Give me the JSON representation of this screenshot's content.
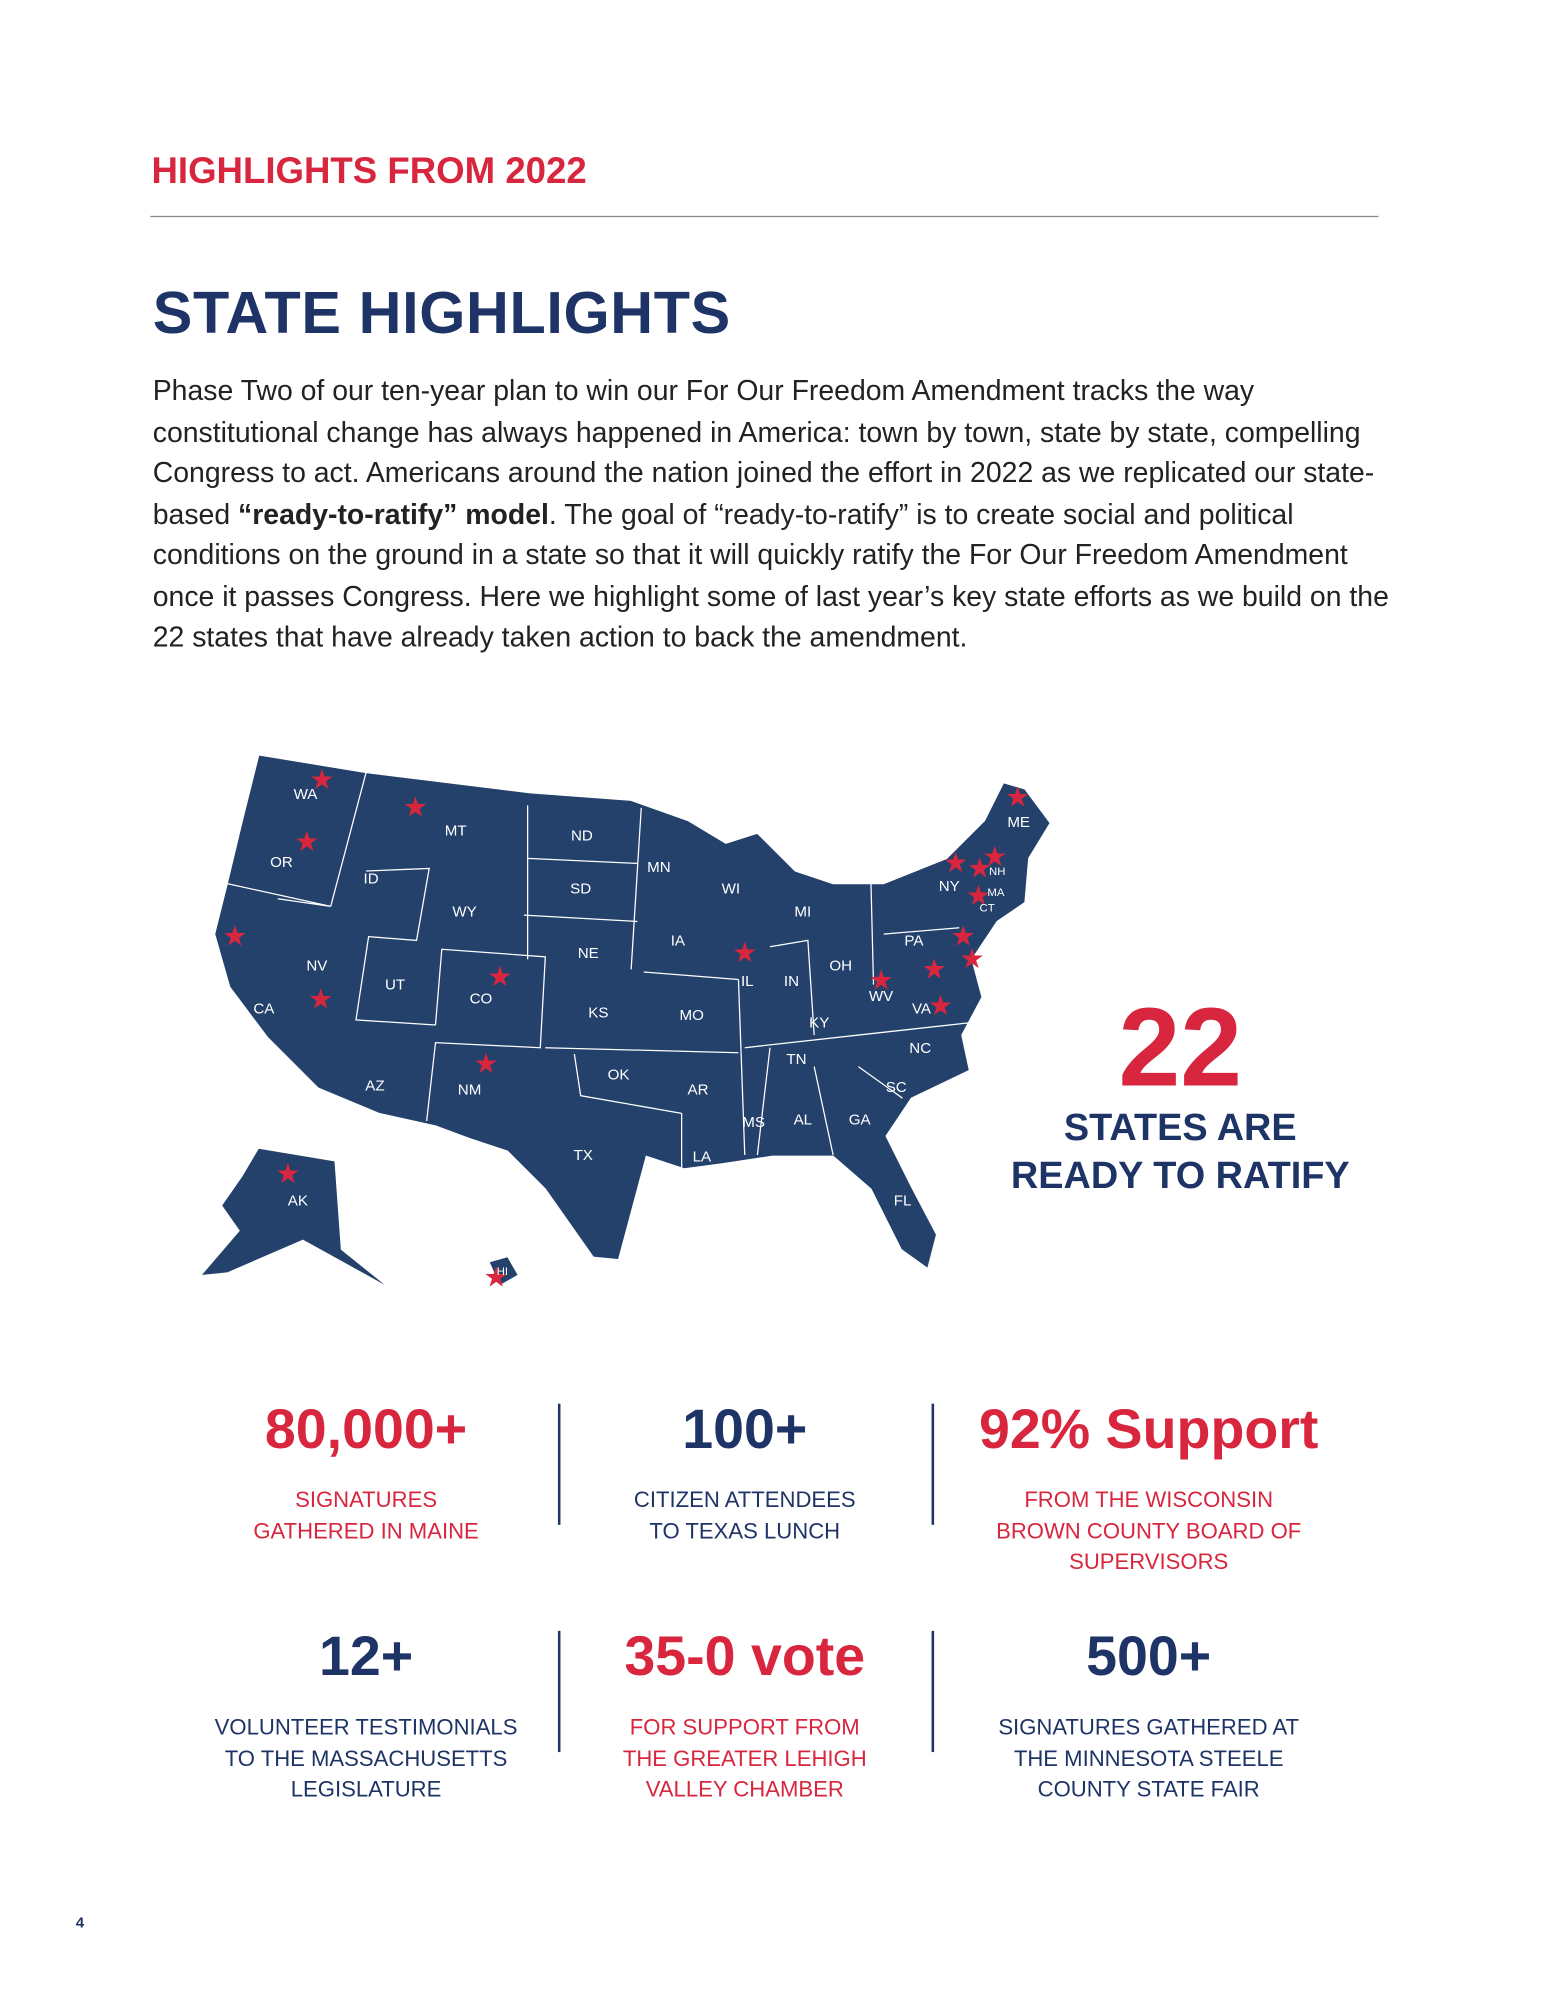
{
  "header": {
    "section": "HIGHLIGHTS FROM 2022",
    "title": "STATE HIGHLIGHTS"
  },
  "intro": {
    "before": "Phase Two of our ten-year plan to win our For Our Freedom Amendment tracks the way constitutional change has always happened in America: town by town, state by state, compelling Congress to act. Americans around the nation joined the effort in 2022 as we replicated our state-based ",
    "bold": "“ready-to-ratify” model",
    "after": ". The goal of “ready-to-ratify” is to create social and political conditions on the ground in a state so that it will quickly ratify the For Our Freedom Amendment once it passes Congress. Here we highlight some of last year’s key state efforts as we build on the 22 states that have already taken action to back the amendment."
  },
  "map": {
    "states": [
      "WA",
      "OR",
      "CA",
      "ID",
      "NV",
      "MT",
      "WY",
      "UT",
      "AZ",
      "CO",
      "NM",
      "ND",
      "SD",
      "NE",
      "KS",
      "OK",
      "TX",
      "MN",
      "IA",
      "MO",
      "AR",
      "LA",
      "WI",
      "IL",
      "MI",
      "IN",
      "KY",
      "TN",
      "MS",
      "AL",
      "GA",
      "FL",
      "SC",
      "NC",
      "OH",
      "WV",
      "VA",
      "PA",
      "NY",
      "ME",
      "NH",
      "MA",
      "CT",
      "AK",
      "HI"
    ]
  },
  "callout": {
    "number": "22",
    "lines": [
      "STATES ARE",
      "READY TO RATIFY"
    ]
  },
  "stats": [
    {
      "value": "80,000+",
      "lines": [
        "SIGNATURES",
        "GATHERED IN MAINE"
      ]
    },
    {
      "value": "100+",
      "lines": [
        "CITIZEN ATTENDEES",
        "TO TEXAS LUNCH"
      ]
    },
    {
      "value": "92% Support",
      "lines": [
        "FROM THE WISCONSIN",
        "BROWN COUNTY BOARD OF",
        "SUPERVISORS"
      ]
    },
    {
      "value": "12+",
      "lines": [
        "VOLUNTEER  TESTIMONIALS",
        "TO THE MASSACHUSETTS",
        "LEGISLATURE"
      ]
    },
    {
      "value": "35-0 vote",
      "lines": [
        "FOR SUPPORT FROM",
        "THE GREATER LEHIGH",
        "VALLEY CHAMBER"
      ]
    },
    {
      "value": "500+",
      "lines": [
        "SIGNATURES GATHERED AT",
        "THE MINNESOTA STEELE",
        "COUNTY STATE FAIR"
      ]
    }
  ],
  "page_number": "4"
}
